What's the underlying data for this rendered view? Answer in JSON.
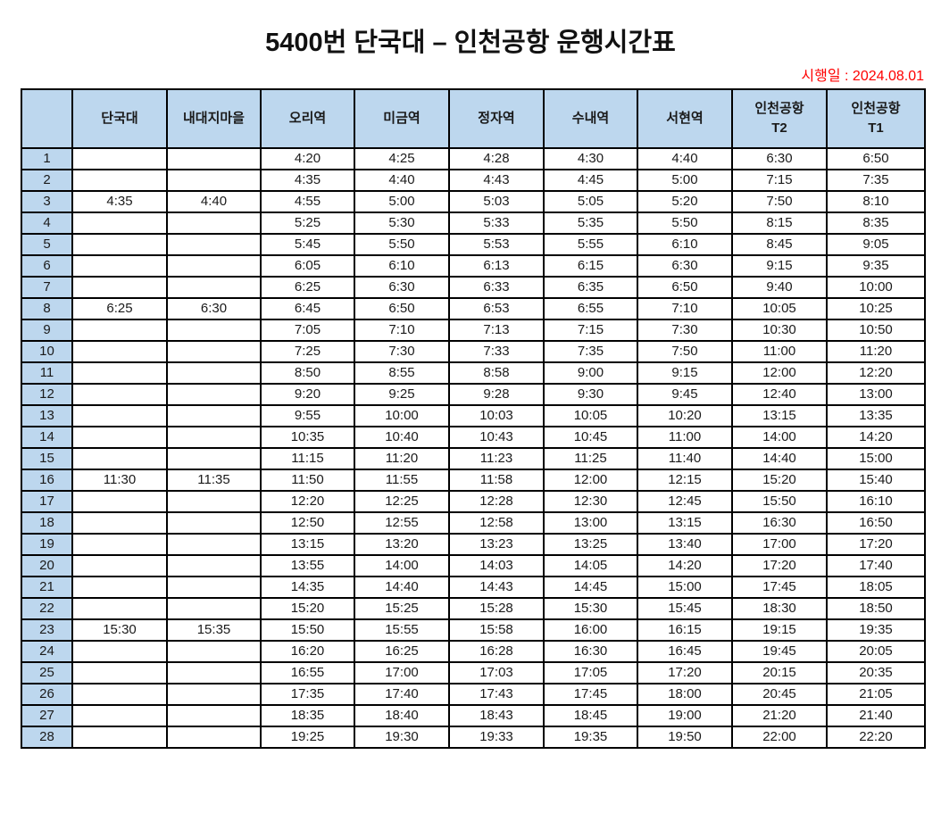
{
  "title": "5400번 단국대 – 인천공항 운행시간표",
  "effective_date": "시행일 : 2024.08.01",
  "colors": {
    "header_bg": "#BDD7EE",
    "border": "#000000",
    "date_text": "#FF0000"
  },
  "table": {
    "columns": [
      {
        "label": "",
        "sub": ""
      },
      {
        "label": "단국대",
        "sub": ""
      },
      {
        "label": "내대지마을",
        "sub": ""
      },
      {
        "label": "오리역",
        "sub": ""
      },
      {
        "label": "미금역",
        "sub": ""
      },
      {
        "label": "정자역",
        "sub": ""
      },
      {
        "label": "수내역",
        "sub": ""
      },
      {
        "label": "서현역",
        "sub": ""
      },
      {
        "label": "인천공항",
        "sub": "T2"
      },
      {
        "label": "인천공항",
        "sub": "T1"
      }
    ],
    "rows": [
      {
        "no": "1",
        "times": [
          "",
          "",
          "4:20",
          "4:25",
          "4:28",
          "4:30",
          "4:40",
          "6:30",
          "6:50"
        ]
      },
      {
        "no": "2",
        "times": [
          "",
          "",
          "4:35",
          "4:40",
          "4:43",
          "4:45",
          "5:00",
          "7:15",
          "7:35"
        ]
      },
      {
        "no": "3",
        "times": [
          "4:35",
          "4:40",
          "4:55",
          "5:00",
          "5:03",
          "5:05",
          "5:20",
          "7:50",
          "8:10"
        ]
      },
      {
        "no": "4",
        "times": [
          "",
          "",
          "5:25",
          "5:30",
          "5:33",
          "5:35",
          "5:50",
          "8:15",
          "8:35"
        ]
      },
      {
        "no": "5",
        "times": [
          "",
          "",
          "5:45",
          "5:50",
          "5:53",
          "5:55",
          "6:10",
          "8:45",
          "9:05"
        ]
      },
      {
        "no": "6",
        "times": [
          "",
          "",
          "6:05",
          "6:10",
          "6:13",
          "6:15",
          "6:30",
          "9:15",
          "9:35"
        ]
      },
      {
        "no": "7",
        "times": [
          "",
          "",
          "6:25",
          "6:30",
          "6:33",
          "6:35",
          "6:50",
          "9:40",
          "10:00"
        ]
      },
      {
        "no": "8",
        "times": [
          "6:25",
          "6:30",
          "6:45",
          "6:50",
          "6:53",
          "6:55",
          "7:10",
          "10:05",
          "10:25"
        ]
      },
      {
        "no": "9",
        "times": [
          "",
          "",
          "7:05",
          "7:10",
          "7:13",
          "7:15",
          "7:30",
          "10:30",
          "10:50"
        ]
      },
      {
        "no": "10",
        "times": [
          "",
          "",
          "7:25",
          "7:30",
          "7:33",
          "7:35",
          "7:50",
          "11:00",
          "11:20"
        ]
      },
      {
        "no": "11",
        "times": [
          "",
          "",
          "8:50",
          "8:55",
          "8:58",
          "9:00",
          "9:15",
          "12:00",
          "12:20"
        ]
      },
      {
        "no": "12",
        "times": [
          "",
          "",
          "9:20",
          "9:25",
          "9:28",
          "9:30",
          "9:45",
          "12:40",
          "13:00"
        ]
      },
      {
        "no": "13",
        "times": [
          "",
          "",
          "9:55",
          "10:00",
          "10:03",
          "10:05",
          "10:20",
          "13:15",
          "13:35"
        ]
      },
      {
        "no": "14",
        "times": [
          "",
          "",
          "10:35",
          "10:40",
          "10:43",
          "10:45",
          "11:00",
          "14:00",
          "14:20"
        ]
      },
      {
        "no": "15",
        "times": [
          "",
          "",
          "11:15",
          "11:20",
          "11:23",
          "11:25",
          "11:40",
          "14:40",
          "15:00"
        ]
      },
      {
        "no": "16",
        "times": [
          "11:30",
          "11:35",
          "11:50",
          "11:55",
          "11:58",
          "12:00",
          "12:15",
          "15:20",
          "15:40"
        ]
      },
      {
        "no": "17",
        "times": [
          "",
          "",
          "12:20",
          "12:25",
          "12:28",
          "12:30",
          "12:45",
          "15:50",
          "16:10"
        ]
      },
      {
        "no": "18",
        "times": [
          "",
          "",
          "12:50",
          "12:55",
          "12:58",
          "13:00",
          "13:15",
          "16:30",
          "16:50"
        ]
      },
      {
        "no": "19",
        "times": [
          "",
          "",
          "13:15",
          "13:20",
          "13:23",
          "13:25",
          "13:40",
          "17:00",
          "17:20"
        ]
      },
      {
        "no": "20",
        "times": [
          "",
          "",
          "13:55",
          "14:00",
          "14:03",
          "14:05",
          "14:20",
          "17:20",
          "17:40"
        ]
      },
      {
        "no": "21",
        "times": [
          "",
          "",
          "14:35",
          "14:40",
          "14:43",
          "14:45",
          "15:00",
          "17:45",
          "18:05"
        ]
      },
      {
        "no": "22",
        "times": [
          "",
          "",
          "15:20",
          "15:25",
          "15:28",
          "15:30",
          "15:45",
          "18:30",
          "18:50"
        ]
      },
      {
        "no": "23",
        "times": [
          "15:30",
          "15:35",
          "15:50",
          "15:55",
          "15:58",
          "16:00",
          "16:15",
          "19:15",
          "19:35"
        ]
      },
      {
        "no": "24",
        "times": [
          "",
          "",
          "16:20",
          "16:25",
          "16:28",
          "16:30",
          "16:45",
          "19:45",
          "20:05"
        ]
      },
      {
        "no": "25",
        "times": [
          "",
          "",
          "16:55",
          "17:00",
          "17:03",
          "17:05",
          "17:20",
          "20:15",
          "20:35"
        ]
      },
      {
        "no": "26",
        "times": [
          "",
          "",
          "17:35",
          "17:40",
          "17:43",
          "17:45",
          "18:00",
          "20:45",
          "21:05"
        ]
      },
      {
        "no": "27",
        "times": [
          "",
          "",
          "18:35",
          "18:40",
          "18:43",
          "18:45",
          "19:00",
          "21:20",
          "21:40"
        ]
      },
      {
        "no": "28",
        "times": [
          "",
          "",
          "19:25",
          "19:30",
          "19:33",
          "19:35",
          "19:50",
          "22:00",
          "22:20"
        ]
      }
    ]
  }
}
